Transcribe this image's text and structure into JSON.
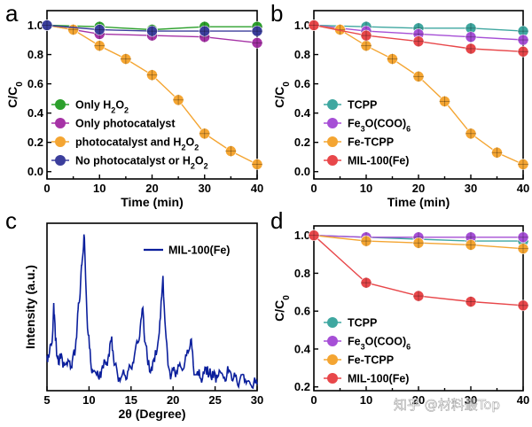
{
  "watermark": "知乎 @材料最Top",
  "chart_data": [
    {
      "panel": "a",
      "type": "line",
      "xlabel": "Time (min)",
      "ylabel": "C/C0",
      "xlim": [
        0,
        40
      ],
      "ylim": [
        -0.05,
        1.1
      ],
      "xticks": [
        0,
        10,
        20,
        30,
        40
      ],
      "yticks": [
        0.0,
        0.2,
        0.4,
        0.6,
        0.8,
        1.0
      ],
      "legend_position": "bottom-left",
      "series": [
        {
          "name": "Only H2O2",
          "label_main": "Only H",
          "label_sub": "2",
          "label_mid": "O",
          "label_sub2": "2",
          "color": "#2ca02c",
          "x": [
            0,
            10,
            20,
            30,
            40
          ],
          "y": [
            1.0,
            0.99,
            0.97,
            0.99,
            0.99
          ]
        },
        {
          "name": "Only photocatalyst",
          "color": "#a633a6",
          "x": [
            0,
            10,
            20,
            30,
            40
          ],
          "y": [
            1.0,
            0.94,
            0.93,
            0.92,
            0.88
          ]
        },
        {
          "name": "photocatalyst and H2O2",
          "color": "#f4a532",
          "x": [
            0,
            5,
            10,
            15,
            20,
            25,
            30,
            35,
            40
          ],
          "y": [
            1.0,
            0.97,
            0.86,
            0.77,
            0.66,
            0.49,
            0.26,
            0.14,
            0.05
          ]
        },
        {
          "name": "No photocatalyst or H2O2",
          "color": "#3b3e9c",
          "x": [
            0,
            10,
            20,
            30,
            40
          ],
          "y": [
            1.0,
            0.97,
            0.96,
            0.96,
            0.96
          ]
        }
      ]
    },
    {
      "panel": "b",
      "type": "line",
      "xlabel": "Time (min)",
      "ylabel": "C/C0",
      "xlim": [
        0,
        40
      ],
      "ylim": [
        -0.05,
        1.1
      ],
      "xticks": [
        0,
        10,
        20,
        30,
        40
      ],
      "yticks": [
        0.0,
        0.2,
        0.4,
        0.6,
        0.8,
        1.0
      ],
      "legend_position": "bottom-left",
      "series": [
        {
          "name": "TCPP",
          "color": "#3fa7a0",
          "x": [
            0,
            10,
            20,
            30,
            40
          ],
          "y": [
            1.0,
            0.99,
            0.98,
            0.98,
            0.96
          ]
        },
        {
          "name": "Fe3O(COO)6",
          "color": "#a64fd6",
          "x": [
            0,
            10,
            20,
            30,
            40
          ],
          "y": [
            1.0,
            0.96,
            0.94,
            0.92,
            0.9
          ]
        },
        {
          "name": "Fe-TCPP",
          "color": "#f4a532",
          "x": [
            0,
            5,
            10,
            15,
            20,
            25,
            30,
            35,
            40
          ],
          "y": [
            1.0,
            0.97,
            0.86,
            0.77,
            0.65,
            0.48,
            0.26,
            0.13,
            0.05
          ]
        },
        {
          "name": "MIL-100(Fe)",
          "color": "#e8474a",
          "x": [
            0,
            10,
            20,
            30,
            40
          ],
          "y": [
            1.0,
            0.93,
            0.89,
            0.84,
            0.82
          ]
        }
      ]
    },
    {
      "panel": "c",
      "type": "line",
      "xlabel": "2θ (Degree)",
      "ylabel": "Intensity (a.u.)",
      "xlim": [
        5,
        30
      ],
      "xticks": [
        5,
        10,
        15,
        20,
        25,
        30
      ],
      "legend_position": "top-right",
      "series": [
        {
          "name": "MIL-100(Fe)",
          "color": "#0b1f9c",
          "x": [
            5.0,
            5.3,
            5.6,
            5.8,
            6.0,
            6.3,
            6.6,
            7.0,
            7.4,
            7.8,
            8.0,
            8.3,
            8.6,
            8.8,
            9.0,
            9.2,
            9.4,
            9.6,
            9.9,
            10.2,
            10.5,
            10.9,
            11.3,
            11.7,
            12.1,
            12.4,
            12.7,
            13.0,
            13.4,
            13.8,
            14.2,
            14.6,
            15.0,
            15.4,
            15.8,
            16.1,
            16.4,
            16.7,
            17.0,
            17.4,
            17.8,
            18.2,
            18.5,
            18.8,
            19.1,
            19.4,
            19.8,
            20.2,
            20.6,
            21.0,
            21.4,
            21.8,
            22.1,
            22.4,
            22.8,
            23.2,
            23.6,
            24.0,
            24.4,
            24.8,
            25.2,
            25.6,
            26.0,
            26.4,
            26.8,
            27.2,
            27.6,
            28.0,
            28.4,
            28.8,
            29.2,
            29.6,
            30.0
          ],
          "y": [
            0.22,
            0.24,
            0.3,
            0.55,
            0.32,
            0.22,
            0.2,
            0.18,
            0.16,
            0.14,
            0.18,
            0.22,
            0.42,
            0.55,
            0.68,
            0.82,
            0.98,
            0.7,
            0.35,
            0.18,
            0.12,
            0.1,
            0.12,
            0.14,
            0.18,
            0.22,
            0.34,
            0.16,
            0.1,
            0.08,
            0.1,
            0.12,
            0.14,
            0.22,
            0.3,
            0.4,
            0.52,
            0.3,
            0.16,
            0.14,
            0.18,
            0.3,
            0.46,
            0.72,
            0.38,
            0.16,
            0.1,
            0.12,
            0.16,
            0.14,
            0.18,
            0.24,
            0.32,
            0.16,
            0.1,
            0.08,
            0.12,
            0.1,
            0.14,
            0.08,
            0.1,
            0.12,
            0.08,
            0.1,
            0.12,
            0.08,
            0.06,
            0.08,
            0.1,
            0.06,
            0.04,
            0.05,
            0.04
          ]
        }
      ]
    },
    {
      "panel": "d",
      "type": "line",
      "xlabel": "",
      "ylabel": "C/C0",
      "xlim": [
        0,
        40
      ],
      "ylim": [
        0.18,
        1.05
      ],
      "xticks": [
        0,
        10,
        20,
        30,
        40
      ],
      "yticks": [
        0.2,
        0.4,
        0.6,
        0.8,
        1.0
      ],
      "legend_position": "bottom-left",
      "series": [
        {
          "name": "TCPP",
          "color": "#3fa7a0",
          "x": [
            0,
            10,
            20,
            30,
            40
          ],
          "y": [
            1.0,
            0.99,
            0.98,
            0.97,
            0.97
          ]
        },
        {
          "name": "Fe3O(COO)6",
          "color": "#a64fd6",
          "x": [
            0,
            10,
            20,
            30,
            40
          ],
          "y": [
            1.0,
            0.99,
            0.99,
            0.99,
            0.99
          ]
        },
        {
          "name": "Fe-TCPP",
          "color": "#f4a532",
          "x": [
            0,
            10,
            20,
            30,
            40
          ],
          "y": [
            1.0,
            0.97,
            0.96,
            0.95,
            0.93
          ]
        },
        {
          "name": "MIL-100(Fe)",
          "color": "#e8474a",
          "x": [
            0,
            10,
            20,
            30,
            40
          ],
          "y": [
            1.0,
            0.75,
            0.68,
            0.65,
            0.63
          ]
        }
      ]
    }
  ],
  "legends": {
    "a": [
      {
        "main": "Only H",
        "s1": "2",
        "mid": "O",
        "s2": "2",
        "tail": ""
      },
      {
        "main": "Only photocatalyst",
        "s1": "",
        "mid": "",
        "s2": "",
        "tail": ""
      },
      {
        "main": "photocatalyst and H",
        "s1": "2",
        "mid": "O",
        "s2": "2",
        "tail": ""
      },
      {
        "main": "No photocatalyst or H",
        "s1": "2",
        "mid": "O",
        "s2": "2",
        "tail": ""
      }
    ],
    "b": [
      {
        "main": "TCPP",
        "s1": "",
        "mid": "",
        "s2": "",
        "tail": ""
      },
      {
        "main": "Fe",
        "s1": "3",
        "mid": "O(COO)",
        "s2": "6",
        "tail": ""
      },
      {
        "main": "Fe-TCPP",
        "s1": "",
        "mid": "",
        "s2": "",
        "tail": ""
      },
      {
        "main": "MIL-100(Fe)",
        "s1": "",
        "mid": "",
        "s2": "",
        "tail": ""
      }
    ],
    "c": [
      {
        "main": "MIL-100(Fe)",
        "s1": "",
        "mid": "",
        "s2": "",
        "tail": ""
      }
    ],
    "d": [
      {
        "main": "TCPP",
        "s1": "",
        "mid": "",
        "s2": "",
        "tail": ""
      },
      {
        "main": "Fe",
        "s1": "3",
        "mid": "O(COO)",
        "s2": "6",
        "tail": ""
      },
      {
        "main": "Fe-TCPP",
        "s1": "",
        "mid": "",
        "s2": "",
        "tail": ""
      },
      {
        "main": "MIL-100(Fe)",
        "s1": "",
        "mid": "",
        "s2": "",
        "tail": ""
      }
    ]
  },
  "ylabel_parts": {
    "main": "C/C",
    "sub": "0"
  }
}
